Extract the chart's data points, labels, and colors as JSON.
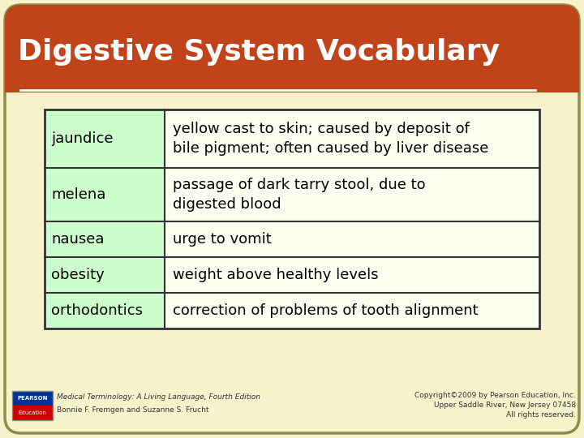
{
  "title": "Digestive System Vocabulary",
  "title_bg": "#c0431a",
  "title_color": "#ffffff",
  "slide_bg": "#f5f2cc",
  "slide_border": "#8b8b4b",
  "table_border": "#333333",
  "term_bg": "#ccffcc",
  "def_bg": "#fafff0",
  "rows": [
    {
      "term": "jaundice",
      "definition": "yellow cast to skin; caused by deposit of\nbile pigment; often caused by liver disease"
    },
    {
      "term": "melena",
      "definition": "passage of dark tarry stool, due to\ndigested blood"
    },
    {
      "term": "nausea",
      "definition": "urge to vomit"
    },
    {
      "term": "obesity",
      "definition": "weight above healthy levels"
    },
    {
      "term": "orthodontics",
      "definition": "correction of problems of tooth alignment"
    }
  ],
  "footer_left_italic": "Medical Terminology: A Living Language, Fourth Edition",
  "footer_left_normal": "Bonnie F. Fremgen and Suzanne S. Frucht",
  "footer_right_line1": "Copyright©2009 by Pearson Education, Inc.",
  "footer_right_line2": "Upper Saddle River, New Jersey 07458",
  "footer_right_line3": "All rights reserved.",
  "footer_color": "#333333",
  "pearson_box_color": "#003399"
}
